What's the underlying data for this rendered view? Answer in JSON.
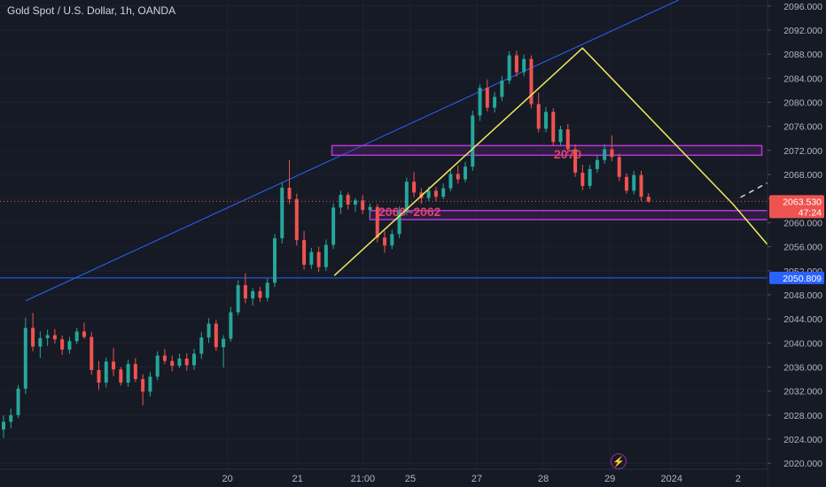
{
  "header": {
    "title": "Gold Spot / U.S. Dollar, 1h, OANDA"
  },
  "icons": {
    "flash": "lightning-icon"
  },
  "colors": {
    "background": "#161a25",
    "up": "#26a69a",
    "down": "#ef5350",
    "trendline": "#2962ff",
    "pattern": "#f3e95c",
    "zone_border": "#b03ad6",
    "zone_label": "#e0426a",
    "grid": "#1e222d",
    "axis_text": "#b2b5be"
  },
  "chart_data": {
    "type": "candlestick",
    "symbol": "Gold Spot / U.S. Dollar",
    "interval": "1h",
    "source": "OANDA",
    "ylim": [
      2019,
      2097
    ],
    "y_ticks": [
      "2096.000",
      "2092.000",
      "2088.000",
      "2084.000",
      "2080.000",
      "2076.000",
      "2072.000",
      "2068.000",
      "2064.000",
      "2060.000",
      "2056.000",
      "2052.000",
      "2048.000",
      "2044.000",
      "2040.000",
      "2036.000",
      "2032.000",
      "2028.000",
      "2024.000",
      "2020.000"
    ],
    "x_ticks": [
      {
        "label": "20",
        "t": 19.0
      },
      {
        "label": "21",
        "t": 24.9
      },
      {
        "label": "21:00",
        "t": 30.4
      },
      {
        "label": "25",
        "t": 34.4
      },
      {
        "label": "27",
        "t": 40.0
      },
      {
        "label": "28",
        "t": 45.6
      },
      {
        "label": "29",
        "t": 51.2
      },
      {
        "label": "2024",
        "t": 56.4
      },
      {
        "label": "2",
        "t": 62.0
      }
    ],
    "candles_ohlc": [
      [
        2025.6,
        2028.0,
        2024.2,
        2026.9
      ],
      [
        2026.9,
        2029.1,
        2025.8,
        2028.0
      ],
      [
        2028.0,
        2033.0,
        2027.5,
        2032.4
      ],
      [
        2032.4,
        2044.2,
        2031.5,
        2042.5
      ],
      [
        2042.5,
        2045.0,
        2038.6,
        2039.4
      ],
      [
        2039.4,
        2041.9,
        2037.5,
        2040.8
      ],
      [
        2040.8,
        2042.2,
        2039.5,
        2041.3
      ],
      [
        2041.3,
        2042.3,
        2039.9,
        2040.6
      ],
      [
        2040.6,
        2041.2,
        2038.0,
        2038.9
      ],
      [
        2038.9,
        2041.0,
        2038.2,
        2040.3
      ],
      [
        2040.3,
        2042.5,
        2039.8,
        2041.9
      ],
      [
        2041.9,
        2043.4,
        2040.7,
        2041.0
      ],
      [
        2041.0,
        2041.8,
        2034.7,
        2035.5
      ],
      [
        2035.5,
        2037.0,
        2032.2,
        2033.4
      ],
      [
        2033.4,
        2037.6,
        2032.6,
        2036.9
      ],
      [
        2036.9,
        2039.2,
        2034.5,
        2035.6
      ],
      [
        2035.6,
        2036.0,
        2032.9,
        2033.4
      ],
      [
        2033.4,
        2037.2,
        2032.7,
        2036.5
      ],
      [
        2036.5,
        2037.5,
        2033.5,
        2034.0
      ],
      [
        2034.0,
        2034.8,
        2029.6,
        2031.9
      ],
      [
        2031.9,
        2035.2,
        2031.1,
        2034.4
      ],
      [
        2034.4,
        2038.6,
        2033.8,
        2037.9
      ],
      [
        2037.9,
        2039.0,
        2036.5,
        2037.0
      ],
      [
        2037.0,
        2037.9,
        2035.3,
        2036.2
      ],
      [
        2036.2,
        2038.2,
        2035.8,
        2037.4
      ],
      [
        2037.4,
        2038.3,
        2035.4,
        2036.3
      ],
      [
        2036.3,
        2039.0,
        2035.5,
        2038.2
      ],
      [
        2038.2,
        2041.8,
        2037.3,
        2040.9
      ],
      [
        2040.9,
        2044.1,
        2040.0,
        2043.2
      ],
      [
        2043.2,
        2043.8,
        2038.7,
        2039.3
      ],
      [
        2039.3,
        2041.3,
        2035.9,
        2040.7
      ],
      [
        2040.7,
        2046.0,
        2040.2,
        2045.1
      ],
      [
        2045.1,
        2050.4,
        2044.6,
        2049.6
      ],
      [
        2049.6,
        2051.6,
        2046.6,
        2047.4
      ],
      [
        2047.4,
        2049.1,
        2046.2,
        2048.6
      ],
      [
        2048.6,
        2049.3,
        2046.8,
        2047.5
      ],
      [
        2047.5,
        2050.7,
        2046.9,
        2050.0
      ],
      [
        2050.0,
        2058.1,
        2049.3,
        2057.4
      ],
      [
        2057.4,
        2066.6,
        2056.5,
        2065.8
      ],
      [
        2065.8,
        2070.4,
        2063.1,
        2063.9
      ],
      [
        2063.9,
        2064.8,
        2056.2,
        2057.1
      ],
      [
        2057.1,
        2058.6,
        2052.2,
        2053.0
      ],
      [
        2053.0,
        2055.8,
        2052.3,
        2055.1
      ],
      [
        2055.1,
        2056.0,
        2051.8,
        2052.6
      ],
      [
        2052.6,
        2057.2,
        2052.0,
        2056.3
      ],
      [
        2056.3,
        2063.2,
        2055.6,
        2062.5
      ],
      [
        2062.5,
        2065.3,
        2061.4,
        2064.6
      ],
      [
        2064.6,
        2065.0,
        2062.2,
        2063.0
      ],
      [
        2063.0,
        2064.1,
        2061.8,
        2063.7
      ],
      [
        2063.7,
        2064.6,
        2061.4,
        2062.1
      ],
      [
        2062.1,
        2063.2,
        2060.9,
        2062.6
      ],
      [
        2062.6,
        2063.1,
        2056.7,
        2057.5
      ],
      [
        2057.5,
        2058.6,
        2055.0,
        2056.2
      ],
      [
        2056.2,
        2058.8,
        2055.6,
        2058.1
      ],
      [
        2058.1,
        2062.7,
        2057.4,
        2061.8
      ],
      [
        2061.8,
        2067.5,
        2061.2,
        2066.8
      ],
      [
        2066.8,
        2068.4,
        2064.2,
        2065.0
      ],
      [
        2065.0,
        2065.7,
        2063.1,
        2064.1
      ],
      [
        2064.1,
        2066.0,
        2063.6,
        2065.3
      ],
      [
        2065.3,
        2065.9,
        2063.5,
        2064.3
      ],
      [
        2064.3,
        2066.5,
        2063.9,
        2065.7
      ],
      [
        2065.7,
        2068.8,
        2065.2,
        2068.1
      ],
      [
        2068.1,
        2069.5,
        2066.5,
        2067.2
      ],
      [
        2067.2,
        2070.1,
        2066.7,
        2069.3
      ],
      [
        2069.3,
        2078.6,
        2068.6,
        2077.8
      ],
      [
        2077.8,
        2083.0,
        2076.9,
        2082.4
      ],
      [
        2082.4,
        2083.8,
        2078.5,
        2079.1
      ],
      [
        2079.1,
        2081.7,
        2078.3,
        2080.9
      ],
      [
        2080.9,
        2084.4,
        2080.2,
        2083.6
      ],
      [
        2083.6,
        2088.5,
        2083.0,
        2087.8
      ],
      [
        2087.8,
        2088.6,
        2084.2,
        2085.0
      ],
      [
        2085.0,
        2087.9,
        2084.3,
        2087.2
      ],
      [
        2087.2,
        2087.8,
        2079.0,
        2079.7
      ],
      [
        2079.7,
        2081.6,
        2075.0,
        2075.6
      ],
      [
        2075.6,
        2079.2,
        2075.0,
        2078.4
      ],
      [
        2078.4,
        2079.0,
        2072.8,
        2073.4
      ],
      [
        2073.4,
        2076.1,
        2072.8,
        2075.5
      ],
      [
        2075.5,
        2076.4,
        2071.5,
        2072.2
      ],
      [
        2072.2,
        2073.0,
        2067.6,
        2068.3
      ],
      [
        2068.3,
        2069.6,
        2065.4,
        2066.1
      ],
      [
        2066.1,
        2069.6,
        2065.6,
        2068.9
      ],
      [
        2068.9,
        2071.1,
        2068.3,
        2070.4
      ],
      [
        2070.4,
        2073.0,
        2069.8,
        2072.2
      ],
      [
        2072.2,
        2074.5,
        2070.2,
        2070.9
      ],
      [
        2070.9,
        2071.5,
        2066.9,
        2067.6
      ],
      [
        2067.6,
        2068.2,
        2064.8,
        2065.3
      ],
      [
        2065.3,
        2068.6,
        2064.7,
        2067.9
      ],
      [
        2067.9,
        2068.6,
        2063.6,
        2064.3
      ],
      [
        2064.3,
        2064.9,
        2063.3,
        2063.5
      ]
    ],
    "horizontal_line": {
      "value": 2050.809,
      "label": "2050.809"
    },
    "price_tag": {
      "value": 2063.53,
      "label": "2063.530",
      "countdown": "47:24"
    },
    "zones": [
      {
        "label": "2070",
        "top": 2072.8,
        "bottom": 2071.2,
        "t_start": 27.8,
        "t_end": 64.0
      },
      {
        "label": "2060~2062",
        "top": 2062.0,
        "bottom": 2060.5,
        "t_start": 31.0,
        "t_end": 70.0
      }
    ],
    "trendline": {
      "points": [
        [
          2.0,
          2047.0
        ],
        [
          57.0,
          2097.0
        ]
      ]
    },
    "pattern": {
      "points": [
        [
          28.0,
          2051.2
        ],
        [
          48.9,
          2089.0
        ],
        [
          61.6,
          2063.0
        ],
        [
          66.7,
          2051.2
        ]
      ]
    },
    "projection": {
      "points": [
        [
          62.2,
          2064.2
        ],
        [
          68.6,
          2071.0
        ]
      ]
    }
  }
}
